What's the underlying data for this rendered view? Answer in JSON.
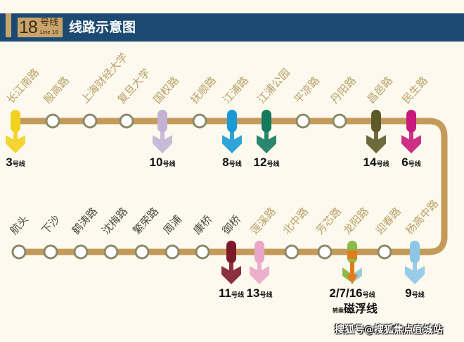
{
  "header": {
    "badge_number": "18",
    "badge_hao": "号线",
    "badge_en": "Line 18",
    "title": "线路示意图"
  },
  "colors": {
    "track": "#c49a5a",
    "station_ring": "#8a8a6a",
    "top_label": "#b8a067",
    "bottom_label_dark": "#4a4a40",
    "bottom_label_gold": "#b8a067"
  },
  "line_suffix": "号线",
  "top_stations": [
    {
      "name": "长江南路",
      "transfer": "3",
      "color": "#f2d21f"
    },
    {
      "name": "殷高路"
    },
    {
      "name": "上海财经大学"
    },
    {
      "name": "复旦大学"
    },
    {
      "name": "国权路",
      "transfer": "10",
      "color": "#c3b2d6"
    },
    {
      "name": "抚顺路"
    },
    {
      "name": "江浦路",
      "transfer": "8",
      "color": "#1a9ad6"
    },
    {
      "name": "江浦公园",
      "transfer": "12",
      "color": "#137a5e"
    },
    {
      "name": "平凉路"
    },
    {
      "name": "丹阳路"
    },
    {
      "name": "昌邑路",
      "transfer": "14",
      "color": "#5e5a28"
    },
    {
      "name": "民生路",
      "transfer": "6",
      "color": "#c8197a"
    }
  ],
  "bottom_stations": [
    {
      "name": "航头",
      "dark": true
    },
    {
      "name": "下沙",
      "dark": true
    },
    {
      "name": "鹤涛路",
      "dark": true
    },
    {
      "name": "沈梅路",
      "dark": true
    },
    {
      "name": "繁荣路",
      "dark": true
    },
    {
      "name": "周浦",
      "dark": true
    },
    {
      "name": "康桥",
      "dark": true
    },
    {
      "name": "御桥",
      "dark": true,
      "transfer": "11",
      "color": "#7d1a2a"
    },
    {
      "name": "莲溪路",
      "transfer": "13",
      "color": "#eaa6c8"
    },
    {
      "name": "北中路"
    },
    {
      "name": "芳芯路"
    },
    {
      "name": "龙阳路",
      "transfer": "2/7/16",
      "color": "#d98a2a",
      "multi": [
        "#8cba4a",
        "#e07c1c",
        "#9ccbd6"
      ],
      "extra_prefix": "转乘",
      "extra": "磁浮线"
    },
    {
      "name": "迎春路"
    },
    {
      "name": "杨高中路",
      "transfer": "9",
      "color": "#8ec6e6"
    }
  ],
  "watermark": "搜狐号@搜狐焦点宜城站"
}
